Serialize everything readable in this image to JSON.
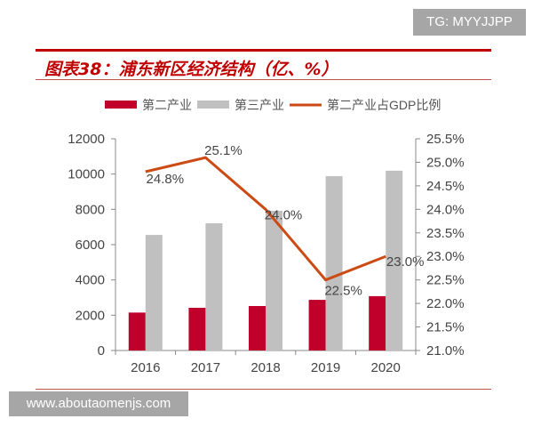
{
  "watermark_top": "TG: MYYJJPP",
  "watermark_bottom": "www.aboutaomenjs.com",
  "chart_data": {
    "type": "bar+line",
    "title": "图表38：浦东新区经济结构（亿、%）",
    "categories": [
      "2016",
      "2017",
      "2018",
      "2019",
      "2020"
    ],
    "series": [
      {
        "name": "第二产业",
        "type": "bar",
        "axis": "left",
        "color": "#c0002a",
        "values": [
          2150,
          2420,
          2520,
          2870,
          3080
        ]
      },
      {
        "name": "第三产业",
        "type": "bar",
        "axis": "left",
        "color": "#c0c0c0",
        "values": [
          6550,
          7210,
          7920,
          9880,
          10190
        ]
      },
      {
        "name": "第二产业占GDP比例",
        "type": "line",
        "axis": "right",
        "color": "#cc4a14",
        "values": [
          24.8,
          25.1,
          24.0,
          22.5,
          23.0
        ],
        "labels": [
          "24.8%",
          "25.1%",
          "24.0%",
          "22.5%",
          "23.0%"
        ]
      }
    ],
    "yleft": {
      "range": [
        0,
        12000
      ],
      "ticks": [
        "0",
        "2000",
        "4000",
        "6000",
        "8000",
        "10000",
        "12000"
      ]
    },
    "yright": {
      "range": [
        21.0,
        25.5
      ],
      "ticks": [
        "21.0%",
        "21.5%",
        "22.0%",
        "22.5%",
        "23.0%",
        "23.5%",
        "24.0%",
        "24.5%",
        "25.0%",
        "25.5%"
      ]
    },
    "legend": "top",
    "grid": false
  }
}
